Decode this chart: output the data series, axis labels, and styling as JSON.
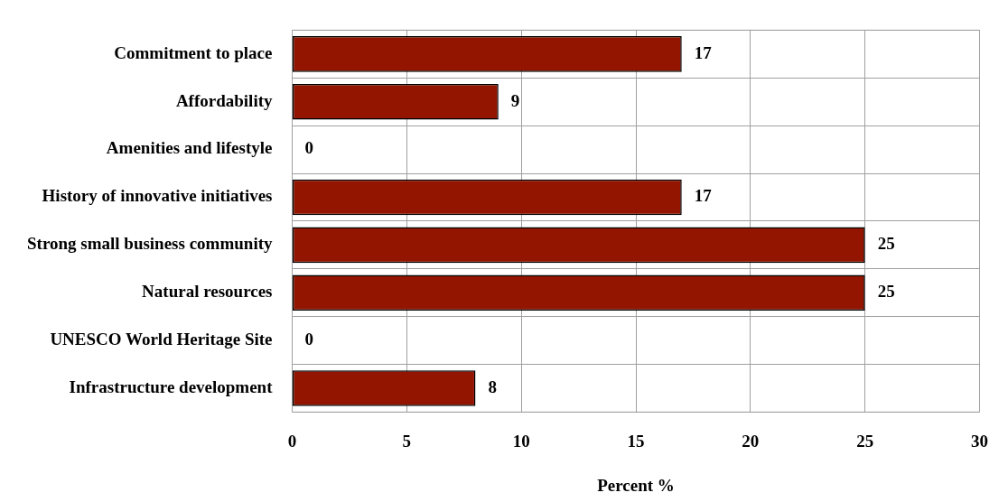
{
  "chart_data": {
    "type": "bar",
    "orientation": "horizontal",
    "xlabel": "Percent %",
    "categories": [
      "Commitment to place",
      "Affordability",
      "Amenities and lifestyle",
      "History of innovative initiatives",
      "Strong small business community",
      "Natural resources",
      "UNESCO World Heritage Site",
      "Infrastructure development"
    ],
    "values": [
      17,
      9,
      0,
      17,
      25,
      25,
      0,
      8
    ],
    "color": "#931500",
    "xlim": [
      0,
      30
    ],
    "xticks": [
      0,
      5,
      10,
      15,
      20,
      25,
      30
    ],
    "grid": true,
    "data_labels": true,
    "legend": false
  }
}
